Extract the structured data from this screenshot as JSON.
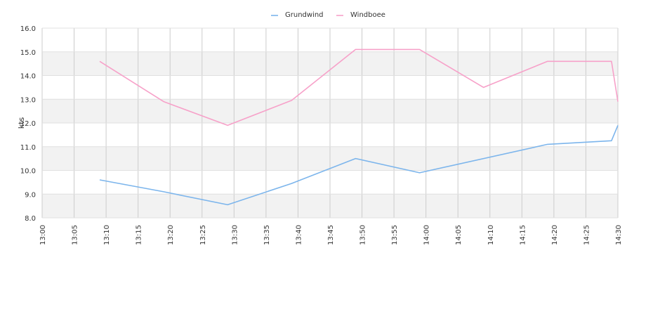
{
  "chart_data": {
    "type": "line",
    "title": "",
    "xlabel": "",
    "ylabel": "kts",
    "ylim": [
      8.0,
      16.0
    ],
    "yticks": [
      "8.0",
      "9.0",
      "10.0",
      "11.0",
      "12.0",
      "13.0",
      "14.0",
      "15.0",
      "16.0"
    ],
    "xticks": [
      "13:00",
      "13:05",
      "13:10",
      "13:15",
      "13:20",
      "13:25",
      "13:30",
      "13:35",
      "13:40",
      "13:45",
      "13:50",
      "13:55",
      "14:00",
      "14:05",
      "14:10",
      "14:15",
      "14:20",
      "14:25",
      "14:30"
    ],
    "grid": true,
    "legend_position": "top-center",
    "series": [
      {
        "name": "Grundwind",
        "color": "#7cb5ec",
        "points": [
          {
            "x": "13:09",
            "y": 9.6
          },
          {
            "x": "13:19",
            "y": 9.1
          },
          {
            "x": "13:29",
            "y": 8.55
          },
          {
            "x": "13:39",
            "y": 9.45
          },
          {
            "x": "13:49",
            "y": 10.5
          },
          {
            "x": "13:59",
            "y": 9.9
          },
          {
            "x": "14:19",
            "y": 11.1
          },
          {
            "x": "14:29",
            "y": 11.25
          },
          {
            "x": "14:30",
            "y": 11.9
          }
        ]
      },
      {
        "name": "Windboee",
        "color": "#f7a1c9",
        "points": [
          {
            "x": "13:09",
            "y": 14.6
          },
          {
            "x": "13:19",
            "y": 12.9
          },
          {
            "x": "13:29",
            "y": 11.9
          },
          {
            "x": "13:39",
            "y": 12.95
          },
          {
            "x": "13:49",
            "y": 15.1
          },
          {
            "x": "13:59",
            "y": 15.1
          },
          {
            "x": "14:09",
            "y": 13.5
          },
          {
            "x": "14:19",
            "y": 14.6
          },
          {
            "x": "14:29",
            "y": 14.6
          },
          {
            "x": "14:30",
            "y": 12.9
          }
        ]
      }
    ]
  }
}
